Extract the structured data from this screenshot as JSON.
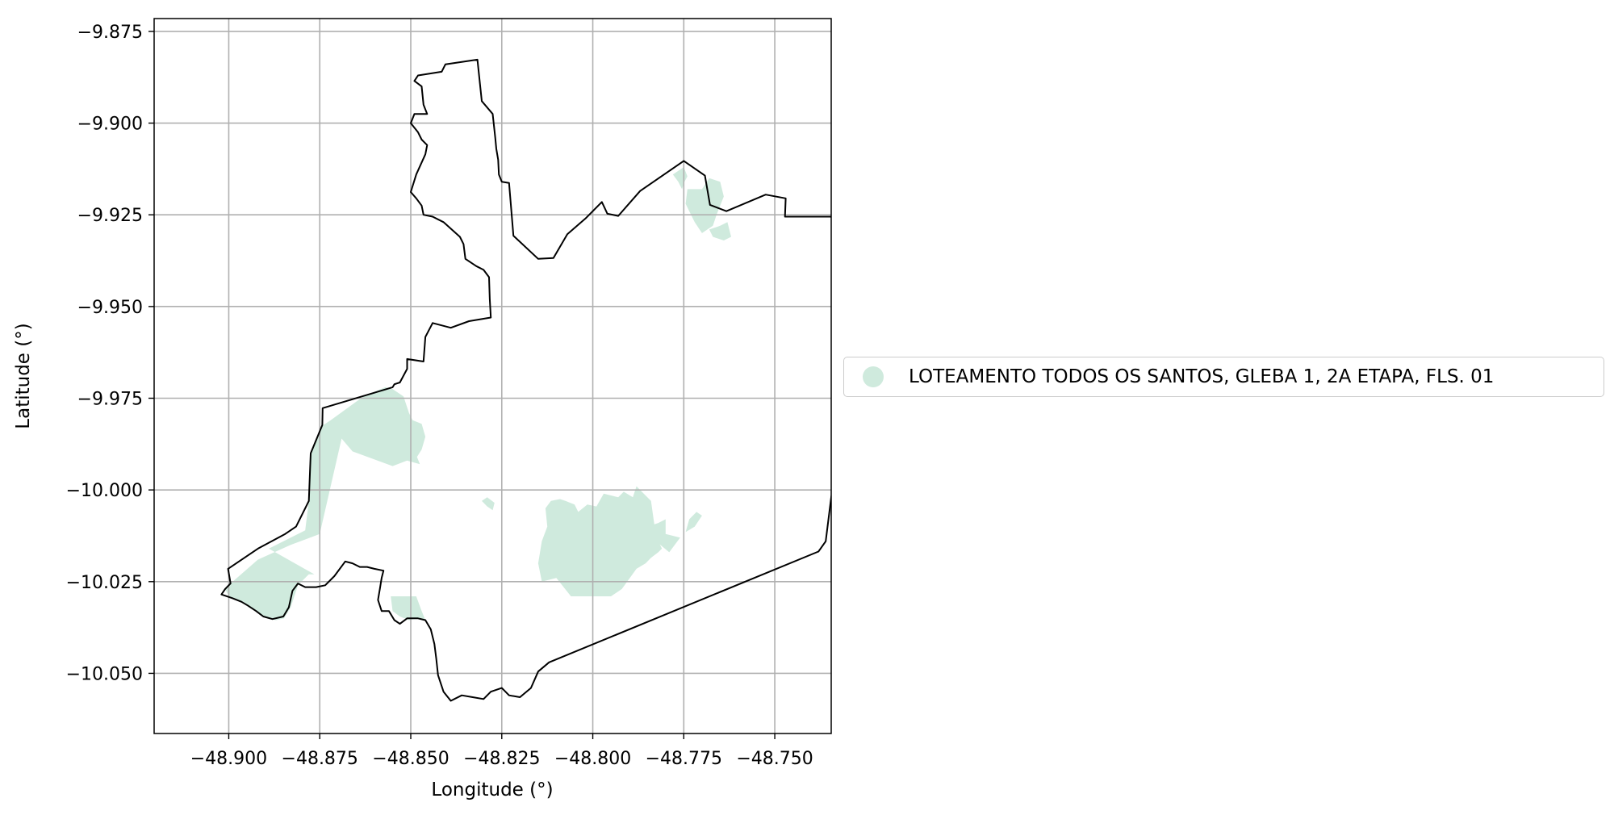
{
  "chart_data": {
    "type": "map",
    "xlabel": "Longitude (°)",
    "ylabel": "Latitude (°)",
    "xlim": [
      -48.9205,
      -48.7345
    ],
    "ylim": [
      -10.0664,
      -9.8715
    ],
    "grid": true,
    "x_ticks": [
      {
        "value": -48.9,
        "label": "−48.900"
      },
      {
        "value": -48.875,
        "label": "−48.875"
      },
      {
        "value": -48.85,
        "label": "−48.850"
      },
      {
        "value": -48.825,
        "label": "−48.825"
      },
      {
        "value": -48.8,
        "label": "−48.800"
      },
      {
        "value": -48.775,
        "label": "−48.775"
      },
      {
        "value": -48.75,
        "label": "−48.750"
      }
    ],
    "y_ticks": [
      {
        "value": -9.875,
        "label": "−9.875"
      },
      {
        "value": -9.9,
        "label": "−9.900"
      },
      {
        "value": -9.925,
        "label": "−9.925"
      },
      {
        "value": -9.95,
        "label": "−9.950"
      },
      {
        "value": -9.975,
        "label": "−9.975"
      },
      {
        "value": -10.0,
        "label": "−10.000"
      },
      {
        "value": -10.025,
        "label": "−10.025"
      },
      {
        "value": -10.05,
        "label": "−10.050"
      }
    ],
    "legend_placement": "center-right, outside plot",
    "series": [
      {
        "name": "LOTEAMENTO TODOS OS SANTOS, GLEBA 1, 2A ETAPA, FLS. 01",
        "color": "#cfeadd"
      }
    ],
    "boundary_color": "#000000",
    "boundary": [
      [
        -48.8317,
        -9.8827
      ],
      [
        -48.8305,
        -9.894
      ],
      [
        -48.8275,
        -9.8975
      ],
      [
        -48.8268,
        -9.904
      ],
      [
        -48.8265,
        -9.907
      ],
      [
        -48.826,
        -9.91
      ],
      [
        -48.8258,
        -9.914
      ],
      [
        -48.825,
        -9.916
      ],
      [
        -48.823,
        -9.9163
      ],
      [
        -48.8218,
        -9.9307
      ],
      [
        -48.815,
        -9.937
      ],
      [
        -48.8108,
        -9.9368
      ],
      [
        -48.807,
        -9.9303
      ],
      [
        -48.802,
        -9.926
      ],
      [
        -48.7975,
        -9.9215
      ],
      [
        -48.796,
        -9.9247
      ],
      [
        -48.793,
        -9.9253
      ],
      [
        -48.787,
        -9.9185
      ],
      [
        -48.775,
        -9.9103
      ],
      [
        -48.7692,
        -9.9143
      ],
      [
        -48.7678,
        -9.9223
      ],
      [
        -48.7633,
        -9.924
      ],
      [
        -48.7525,
        -9.9195
      ],
      [
        -48.747,
        -9.9205
      ],
      [
        -48.7472,
        -9.9255
      ],
      [
        -48.7345,
        -9.9255
      ],
      [
        -48.7335,
        -9.9285
      ],
      [
        -48.7285,
        -9.9465
      ],
      [
        -48.7275,
        -9.95
      ],
      [
        -48.7265,
        -9.9645
      ],
      [
        -48.7282,
        -9.97
      ],
      [
        -48.7293,
        -9.973
      ],
      [
        -48.7345,
        -10.002
      ],
      [
        -48.736,
        -10.014
      ],
      [
        -48.738,
        -10.0168
      ],
      [
        -48.812,
        -10.047
      ],
      [
        -48.815,
        -10.0495
      ],
      [
        -48.817,
        -10.054
      ],
      [
        -48.82,
        -10.0565
      ],
      [
        -48.823,
        -10.056
      ],
      [
        -48.825,
        -10.054
      ],
      [
        -48.828,
        -10.055
      ],
      [
        -48.83,
        -10.057
      ],
      [
        -48.833,
        -10.0565
      ],
      [
        -48.836,
        -10.056
      ],
      [
        -48.839,
        -10.0575
      ],
      [
        -48.841,
        -10.055
      ],
      [
        -48.8425,
        -10.0505
      ],
      [
        -48.843,
        -10.046
      ],
      [
        -48.8435,
        -10.042
      ],
      [
        -48.8445,
        -10.038
      ],
      [
        -48.846,
        -10.0355
      ],
      [
        -48.848,
        -10.035
      ],
      [
        -48.851,
        -10.035
      ],
      [
        -48.853,
        -10.0365
      ],
      [
        -48.8545,
        -10.0355
      ],
      [
        -48.856,
        -10.033
      ],
      [
        -48.858,
        -10.033
      ],
      [
        -48.859,
        -10.03
      ],
      [
        -48.8585,
        -10.027
      ],
      [
        -48.858,
        -10.024
      ],
      [
        -48.8575,
        -10.022
      ],
      [
        -48.86,
        -10.0215
      ],
      [
        -48.862,
        -10.021
      ],
      [
        -48.864,
        -10.021
      ],
      [
        -48.866,
        -10.02
      ],
      [
        -48.868,
        -10.0195
      ],
      [
        -48.871,
        -10.0235
      ],
      [
        -48.8735,
        -10.026
      ],
      [
        -48.876,
        -10.0265
      ],
      [
        -48.879,
        -10.0265
      ],
      [
        -48.881,
        -10.0255
      ],
      [
        -48.8825,
        -10.0275
      ],
      [
        -48.8835,
        -10.032
      ],
      [
        -48.885,
        -10.0345
      ],
      [
        -48.888,
        -10.0352
      ],
      [
        -48.8905,
        -10.0345
      ],
      [
        -48.8925,
        -10.033
      ],
      [
        -48.8948,
        -10.0315
      ],
      [
        -48.8965,
        -10.0305
      ],
      [
        -48.899,
        -10.0295
      ],
      [
        -48.902,
        -10.0285
      ],
      [
        -48.901,
        -10.027
      ],
      [
        -48.8995,
        -10.0255
      ],
      [
        -48.9002,
        -10.0215
      ],
      [
        -48.892,
        -10.016
      ],
      [
        -48.8845,
        -10.012
      ],
      [
        -48.8815,
        -10.01
      ],
      [
        -48.878,
        -10.003
      ],
      [
        -48.8775,
        -9.99
      ],
      [
        -48.8743,
        -9.9823
      ],
      [
        -48.8742,
        -9.9777
      ],
      [
        -48.855,
        -9.972
      ],
      [
        -48.8545,
        -9.9712
      ],
      [
        -48.853,
        -9.9707
      ],
      [
        -48.851,
        -9.967
      ],
      [
        -48.851,
        -9.9643
      ],
      [
        -48.8465,
        -9.965
      ],
      [
        -48.846,
        -9.9583
      ],
      [
        -48.844,
        -9.9545
      ],
      [
        -48.839,
        -9.9558
      ],
      [
        -48.834,
        -9.954
      ],
      [
        -48.828,
        -9.953
      ],
      [
        -48.8283,
        -9.948
      ],
      [
        -48.8285,
        -9.942
      ],
      [
        -48.83,
        -9.94
      ],
      [
        -48.832,
        -9.939
      ],
      [
        -48.835,
        -9.937
      ],
      [
        -48.8355,
        -9.933
      ],
      [
        -48.8365,
        -9.931
      ],
      [
        -48.841,
        -9.927
      ],
      [
        -48.844,
        -9.9255
      ],
      [
        -48.8465,
        -9.925
      ],
      [
        -48.847,
        -9.9225
      ],
      [
        -48.8485,
        -9.9205
      ],
      [
        -48.85,
        -9.9188
      ],
      [
        -48.8485,
        -9.914
      ],
      [
        -48.846,
        -9.9085
      ],
      [
        -48.8455,
        -9.906
      ],
      [
        -48.847,
        -9.9045
      ],
      [
        -48.848,
        -9.9025
      ],
      [
        -48.85,
        -9.9
      ],
      [
        -48.849,
        -9.8975
      ],
      [
        -48.8455,
        -9.8975
      ],
      [
        -48.8465,
        -9.895
      ],
      [
        -48.847,
        -9.89
      ],
      [
        -48.849,
        -9.8885
      ],
      [
        -48.848,
        -9.887
      ],
      [
        -48.8415,
        -9.886
      ],
      [
        -48.8405,
        -9.884
      ],
      [
        -48.8317,
        -9.8827
      ]
    ],
    "parcels": [
      [
        [
          -48.872,
          -9.981
        ],
        [
          -48.863,
          -9.9745
        ],
        [
          -48.857,
          -9.972
        ],
        [
          -48.855,
          -9.9725
        ],
        [
          -48.852,
          -9.9745
        ],
        [
          -48.8505,
          -9.979
        ],
        [
          -48.8495,
          -9.981
        ],
        [
          -48.847,
          -9.982
        ],
        [
          -48.846,
          -9.9855
        ],
        [
          -48.847,
          -9.989
        ],
        [
          -48.8483,
          -9.991
        ],
        [
          -48.8475,
          -9.993
        ],
        [
          -48.851,
          -9.992
        ],
        [
          -48.855,
          -9.9935
        ],
        [
          -48.866,
          -9.9895
        ],
        [
          -48.869,
          -9.986
        ],
        [
          -48.875,
          -10.012
        ],
        [
          -48.883,
          -10.015
        ],
        [
          -48.892,
          -10.019
        ],
        [
          -48.8995,
          -10.0255
        ],
        [
          -48.901,
          -10.027
        ],
        [
          -48.9,
          -10.029
        ],
        [
          -48.896,
          -10.0305
        ],
        [
          -48.892,
          -10.0335
        ],
        [
          -48.8895,
          -10.035
        ],
        [
          -48.887,
          -10.0355
        ],
        [
          -48.8848,
          -10.035
        ],
        [
          -48.883,
          -10.032
        ],
        [
          -48.881,
          -10.026
        ],
        [
          -48.878,
          -10.023
        ],
        [
          -48.8765,
          -10.023
        ],
        [
          -48.889,
          -10.016
        ],
        [
          -48.879,
          -10.011
        ],
        [
          -48.878,
          -10.003
        ],
        [
          -48.8775,
          -9.99
        ],
        [
          -48.8743,
          -9.9825
        ]
      ],
      [
        [
          -48.8485,
          -10.029
        ],
        [
          -48.8555,
          -10.029
        ],
        [
          -48.855,
          -10.033
        ],
        [
          -48.853,
          -10.0345
        ],
        [
          -48.8505,
          -10.0355
        ],
        [
          -48.848,
          -10.035
        ],
        [
          -48.846,
          -10.0355
        ],
        [
          -48.847,
          -10.033
        ]
      ],
      [
        [
          -48.827,
          -10.0035
        ],
        [
          -48.829,
          -10.002
        ],
        [
          -48.8305,
          -10.003
        ],
        [
          -48.829,
          -10.0045
        ],
        [
          -48.8275,
          -10.0055
        ]
      ],
      [
        [
          -48.813,
          -10.005
        ],
        [
          -48.8115,
          -10.003
        ],
        [
          -48.809,
          -10.0025
        ],
        [
          -48.8075,
          -10.003
        ],
        [
          -48.805,
          -10.004
        ],
        [
          -48.804,
          -10.006
        ],
        [
          -48.8015,
          -10.004
        ],
        [
          -48.799,
          -10.0045
        ],
        [
          -48.797,
          -10.001
        ],
        [
          -48.795,
          -10.0015
        ],
        [
          -48.793,
          -10.002
        ],
        [
          -48.7915,
          -10.0005
        ],
        [
          -48.789,
          -10.002
        ],
        [
          -48.788,
          -9.999
        ],
        [
          -48.786,
          -10.001
        ],
        [
          -48.784,
          -10.003
        ],
        [
          -48.783,
          -10.01
        ],
        [
          -48.782,
          -10.014
        ],
        [
          -48.781,
          -10.016
        ],
        [
          -48.782,
          -10.017
        ],
        [
          -48.784,
          -10.0185
        ],
        [
          -48.7855,
          -10.02
        ],
        [
          -48.788,
          -10.0215
        ],
        [
          -48.792,
          -10.027
        ],
        [
          -48.795,
          -10.029
        ],
        [
          -48.806,
          -10.029
        ],
        [
          -48.81,
          -10.024
        ],
        [
          -48.814,
          -10.025
        ],
        [
          -48.815,
          -10.02
        ],
        [
          -48.814,
          -10.014
        ],
        [
          -48.8125,
          -10.01
        ]
      ],
      [
        [
          -48.787,
          -10.012
        ],
        [
          -48.785,
          -10.01
        ],
        [
          -48.782,
          -10.009
        ],
        [
          -48.78,
          -10.008
        ],
        [
          -48.78,
          -10.012
        ],
        [
          -48.776,
          -10.013
        ],
        [
          -48.779,
          -10.017
        ],
        [
          -48.782,
          -10.0145
        ],
        [
          -48.786,
          -10.014
        ]
      ],
      [
        [
          -48.7735,
          -10.008
        ],
        [
          -48.7715,
          -10.006
        ],
        [
          -48.77,
          -10.007
        ],
        [
          -48.772,
          -10.01
        ],
        [
          -48.7745,
          -10.0115
        ]
      ],
      [
        [
          -48.77,
          -9.918
        ],
        [
          -48.768,
          -9.915
        ],
        [
          -48.765,
          -9.916
        ],
        [
          -48.764,
          -9.92
        ],
        [
          -48.766,
          -9.925
        ],
        [
          -48.767,
          -9.928
        ],
        [
          -48.77,
          -9.93
        ],
        [
          -48.772,
          -9.927
        ],
        [
          -48.7745,
          -9.922
        ],
        [
          -48.774,
          -9.918
        ]
      ],
      [
        [
          -48.768,
          -9.929
        ],
        [
          -48.765,
          -9.928
        ],
        [
          -48.763,
          -9.927
        ],
        [
          -48.762,
          -9.931
        ],
        [
          -48.764,
          -9.932
        ],
        [
          -48.767,
          -9.931
        ]
      ],
      [
        [
          -48.774,
          -9.9145
        ],
        [
          -48.775,
          -9.912
        ],
        [
          -48.778,
          -9.914
        ],
        [
          -48.7765,
          -9.916
        ],
        [
          -48.7755,
          -9.918
        ],
        [
          -48.7748,
          -9.916
        ]
      ]
    ]
  }
}
